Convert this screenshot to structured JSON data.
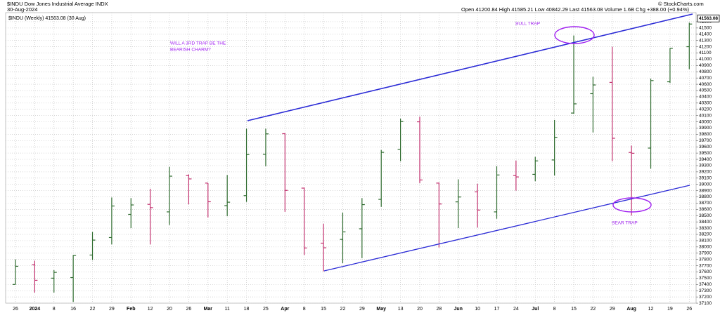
{
  "chart_data": {
    "type": "ohlc",
    "title": "$INDU Dow Jones Industrial Average INDX",
    "date": "30-Aug-2024",
    "quote": "Open 41200.84 High 41585.21 Low 40842.29 Last 41563.08 Volume 1.6B Chg +388.00 (+0.94%)",
    "credit": "© StockCharts.com",
    "legend": "$INDU (Weekly) 41563.08 (30 Aug)",
    "last": 41563.08,
    "annotations": [
      "WILL A 3RD TRAP BE THE",
      "BEARISH CHARM?",
      "BULL TRAP",
      "BEAR TRAP"
    ],
    "categories": [
      "26",
      "2024",
      "8",
      "16",
      "22",
      "29",
      "Feb",
      "12",
      "20",
      "26",
      "Mar",
      "11",
      "18",
      "25",
      "Apr",
      "8",
      "15",
      "22",
      "29",
      "May",
      "13",
      "20",
      "28",
      "Jun",
      "10",
      "17",
      "24",
      "Jul",
      "8",
      "15",
      "22",
      "29",
      "Aug",
      "12",
      "19",
      "26"
    ],
    "open": [
      37400,
      37715,
      37500,
      37510,
      37870,
      38150,
      38520,
      38680,
      38560,
      39140,
      39020,
      38660,
      38820,
      39480,
      39810,
      38940,
      38060,
      38120,
      38290,
      38760,
      39560,
      40000,
      39020,
      38720,
      38880,
      38560,
      39140,
      39160,
      39390,
      40140,
      40450,
      40630,
      39510,
      39580,
      40640,
      41200.84
    ],
    "high": [
      37800,
      37780,
      37630,
      37870,
      38240,
      38790,
      38780,
      38930,
      39280,
      39160,
      39020,
      39150,
      39890,
      39890,
      39820,
      38950,
      38370,
      38550,
      38780,
      39550,
      40050,
      40080,
      39030,
      39080,
      39010,
      39290,
      39380,
      39440,
      40030,
      41380,
      40720,
      41200,
      39620,
      40690,
      41180,
      41585.21
    ],
    "low": [
      37400,
      37270,
      37270,
      37120,
      37790,
      38040,
      38300,
      38040,
      38350,
      38680,
      38470,
      38490,
      38720,
      39290,
      38560,
      37870,
      37610,
      37740,
      37820,
      38640,
      39370,
      39020,
      37990,
      38300,
      38310,
      38450,
      38900,
      39050,
      39140,
      40130,
      39830,
      39370,
      38500,
      39250,
      40620,
      40842.29
    ],
    "close": [
      37690,
      37466,
      37593,
      37863,
      38109,
      38654,
      38671,
      38628,
      39131,
      39087,
      38722,
      38715,
      39476,
      39807,
      38904,
      37983,
      37986,
      38240,
      38676,
      39512,
      40004,
      39070,
      38686,
      38798,
      38589,
      39150,
      39119,
      39375,
      39753,
      40287,
      40589,
      39737,
      39497,
      40659,
      41175,
      41563.08
    ],
    "up_color": "#2e6b2e",
    "down_color": "#c2306e",
    "channel_color": "#2b2bd6",
    "ylim": [
      37050,
      41650
    ],
    "yticks": [
      37100,
      37200,
      37300,
      37400,
      37500,
      37600,
      37700,
      37800,
      37900,
      38000,
      38100,
      38200,
      38300,
      38400,
      38500,
      38600,
      38700,
      38800,
      38900,
      39000,
      39100,
      39200,
      39300,
      39400,
      39500,
      39600,
      39700,
      39800,
      39900,
      40000,
      40100,
      40200,
      40300,
      40400,
      40500,
      40600,
      40700,
      40800,
      40900,
      41000,
      41100,
      41200,
      41300,
      41400,
      41500,
      41600
    ],
    "grid": true
  }
}
